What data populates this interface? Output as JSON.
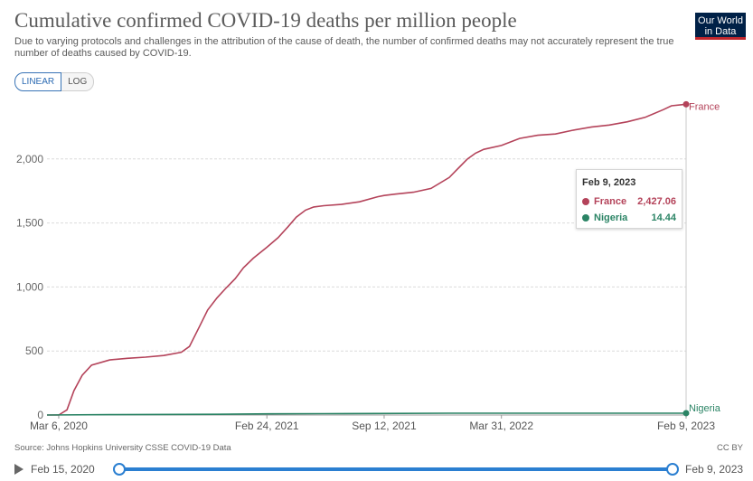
{
  "header": {
    "title": "Cumulative confirmed COVID-19 deaths per million people",
    "subtitle": "Due to varying protocols and challenges in the attribution of the cause of death, the number of confirmed deaths may not accurately represent the true number of deaths caused by COVID-19.",
    "logo_line1": "Our World",
    "logo_line2": "in Data"
  },
  "scale_toggle": {
    "linear_label": "LINEAR",
    "log_label": "LOG",
    "selected": "linear"
  },
  "colors": {
    "france": "#b4435a",
    "nigeria": "#2b8465",
    "accent": "#2b7fd1"
  },
  "chart_data": {
    "type": "line",
    "title": "Cumulative confirmed COVID-19 deaths per million people",
    "xlabel": "",
    "ylabel": "",
    "ylim": [
      0,
      2500
    ],
    "yticks": [
      0,
      500,
      1000,
      1500,
      2000
    ],
    "ytick_labels": [
      "0",
      "500",
      "1,000",
      "1,500",
      "2,000"
    ],
    "xticks": [
      "2020-03-06",
      "2021-02-24",
      "2021-09-12",
      "2022-03-31",
      "2023-02-09"
    ],
    "xtick_labels": [
      "Mar 6, 2020",
      "Feb 24, 2021",
      "Sep 12, 2021",
      "Mar 31, 2022",
      "Feb 9, 2023"
    ],
    "xlim": [
      "2020-02-15",
      "2023-02-09"
    ],
    "grid": true,
    "legend": "line-end labels",
    "series": [
      {
        "name": "France",
        "points": [
          [
            "2020-02-15",
            0
          ],
          [
            "2020-03-06",
            0
          ],
          [
            "2020-03-20",
            40
          ],
          [
            "2020-04-01",
            190
          ],
          [
            "2020-04-15",
            310
          ],
          [
            "2020-05-01",
            390
          ],
          [
            "2020-06-01",
            430
          ],
          [
            "2020-07-01",
            443
          ],
          [
            "2020-08-01",
            452
          ],
          [
            "2020-09-01",
            465
          ],
          [
            "2020-10-01",
            490
          ],
          [
            "2020-10-15",
            535
          ],
          [
            "2020-11-01",
            690
          ],
          [
            "2020-11-15",
            820
          ],
          [
            "2020-12-01",
            915
          ],
          [
            "2020-12-15",
            985
          ],
          [
            "2021-01-01",
            1065
          ],
          [
            "2021-01-15",
            1150
          ],
          [
            "2021-02-01",
            1225
          ],
          [
            "2021-02-24",
            1310
          ],
          [
            "2021-03-15",
            1385
          ],
          [
            "2021-04-01",
            1470
          ],
          [
            "2021-04-15",
            1545
          ],
          [
            "2021-05-01",
            1600
          ],
          [
            "2021-05-15",
            1625
          ],
          [
            "2021-06-01",
            1635
          ],
          [
            "2021-07-01",
            1645
          ],
          [
            "2021-08-01",
            1665
          ],
          [
            "2021-09-01",
            1705
          ],
          [
            "2021-09-12",
            1715
          ],
          [
            "2021-10-01",
            1725
          ],
          [
            "2021-11-01",
            1740
          ],
          [
            "2021-12-01",
            1770
          ],
          [
            "2022-01-01",
            1855
          ],
          [
            "2022-01-15",
            1920
          ],
          [
            "2022-02-01",
            2000
          ],
          [
            "2022-02-15",
            2045
          ],
          [
            "2022-03-01",
            2075
          ],
          [
            "2022-03-31",
            2105
          ],
          [
            "2022-05-01",
            2160
          ],
          [
            "2022-06-01",
            2185
          ],
          [
            "2022-07-01",
            2195
          ],
          [
            "2022-08-01",
            2225
          ],
          [
            "2022-09-01",
            2250
          ],
          [
            "2022-10-01",
            2265
          ],
          [
            "2022-11-01",
            2290
          ],
          [
            "2022-12-01",
            2325
          ],
          [
            "2023-01-01",
            2385
          ],
          [
            "2023-01-15",
            2415
          ],
          [
            "2023-02-09",
            2427.06
          ]
        ],
        "end_label": "France",
        "tooltip_value": "2,427.06"
      },
      {
        "name": "Nigeria",
        "points": [
          [
            "2020-02-15",
            0
          ],
          [
            "2020-06-01",
            2.5
          ],
          [
            "2020-12-01",
            6
          ],
          [
            "2021-03-01",
            9.5
          ],
          [
            "2021-06-01",
            10.4
          ],
          [
            "2021-09-01",
            12.2
          ],
          [
            "2022-01-01",
            14.3
          ],
          [
            "2022-06-01",
            14.4
          ],
          [
            "2023-02-09",
            14.44
          ]
        ],
        "end_label": "Nigeria",
        "tooltip_value": "14.44"
      }
    ]
  },
  "tooltip": {
    "date": "Feb 9, 2023"
  },
  "footer": {
    "source": "Source: Johns Hopkins University CSSE COVID-19 Data",
    "license": "CC BY"
  },
  "timeline": {
    "start_label": "Feb 15, 2020",
    "end_label": "Feb 9, 2023",
    "start_fraction": 0,
    "end_fraction": 1
  }
}
